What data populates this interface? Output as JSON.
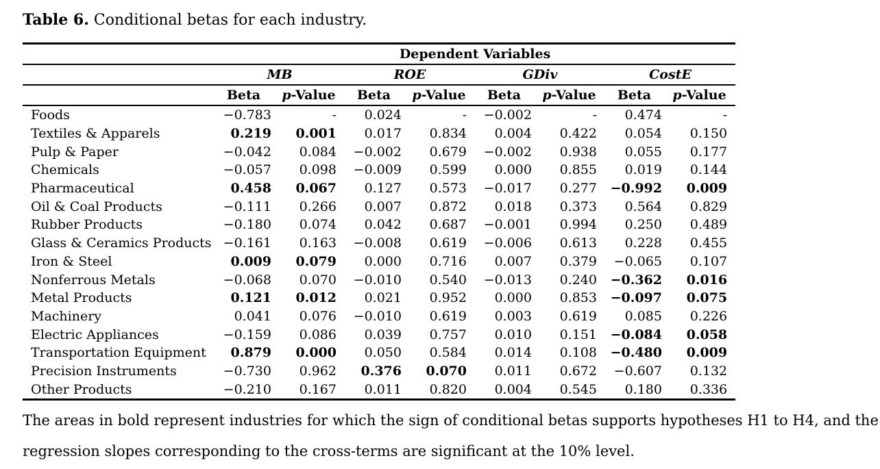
{
  "title": {
    "label": "Table 6.",
    "text": "Conditional betas for each industry."
  },
  "table": {
    "dependent_variables_header": "Dependent Variables",
    "groups": [
      "MB",
      "ROE",
      "GDiv",
      "CostE"
    ],
    "beta_header": "Beta",
    "pvalue_header": {
      "p": "p",
      "rest": "-Value"
    },
    "rows": [
      {
        "industry": "Foods",
        "cells": [
          {
            "v": "−0.783",
            "b": false
          },
          {
            "v": "-",
            "b": false
          },
          {
            "v": "0.024",
            "b": false
          },
          {
            "v": "-",
            "b": false
          },
          {
            "v": "−0.002",
            "b": false
          },
          {
            "v": "-",
            "b": false
          },
          {
            "v": "0.474",
            "b": false
          },
          {
            "v": "-",
            "b": false
          }
        ]
      },
      {
        "industry": "Textiles & Apparels",
        "cells": [
          {
            "v": "0.219",
            "b": true
          },
          {
            "v": "0.001",
            "b": true
          },
          {
            "v": "0.017",
            "b": false
          },
          {
            "v": "0.834",
            "b": false
          },
          {
            "v": "0.004",
            "b": false
          },
          {
            "v": "0.422",
            "b": false
          },
          {
            "v": "0.054",
            "b": false
          },
          {
            "v": "0.150",
            "b": false
          }
        ]
      },
      {
        "industry": "Pulp & Paper",
        "cells": [
          {
            "v": "−0.042",
            "b": false
          },
          {
            "v": "0.084",
            "b": false
          },
          {
            "v": "−0.002",
            "b": false
          },
          {
            "v": "0.679",
            "b": false
          },
          {
            "v": "−0.002",
            "b": false
          },
          {
            "v": "0.938",
            "b": false
          },
          {
            "v": "0.055",
            "b": false
          },
          {
            "v": "0.177",
            "b": false
          }
        ]
      },
      {
        "industry": "Chemicals",
        "cells": [
          {
            "v": "−0.057",
            "b": false
          },
          {
            "v": "0.098",
            "b": false
          },
          {
            "v": "−0.009",
            "b": false
          },
          {
            "v": "0.599",
            "b": false
          },
          {
            "v": "0.000",
            "b": false
          },
          {
            "v": "0.855",
            "b": false
          },
          {
            "v": "0.019",
            "b": false
          },
          {
            "v": "0.144",
            "b": false
          }
        ]
      },
      {
        "industry": "Pharmaceutical",
        "cells": [
          {
            "v": "0.458",
            "b": true
          },
          {
            "v": "0.067",
            "b": true
          },
          {
            "v": "0.127",
            "b": false
          },
          {
            "v": "0.573",
            "b": false
          },
          {
            "v": "−0.017",
            "b": false
          },
          {
            "v": "0.277",
            "b": false
          },
          {
            "v": "−0.992",
            "b": true
          },
          {
            "v": "0.009",
            "b": true
          }
        ]
      },
      {
        "industry": "Oil & Coal Products",
        "cells": [
          {
            "v": "−0.111",
            "b": false
          },
          {
            "v": "0.266",
            "b": false
          },
          {
            "v": "0.007",
            "b": false
          },
          {
            "v": "0.872",
            "b": false
          },
          {
            "v": "0.018",
            "b": false
          },
          {
            "v": "0.373",
            "b": false
          },
          {
            "v": "0.564",
            "b": false
          },
          {
            "v": "0.829",
            "b": false
          }
        ]
      },
      {
        "industry": "Rubber Products",
        "cells": [
          {
            "v": "−0.180",
            "b": false
          },
          {
            "v": "0.074",
            "b": false
          },
          {
            "v": "0.042",
            "b": false
          },
          {
            "v": "0.687",
            "b": false
          },
          {
            "v": "−0.001",
            "b": false
          },
          {
            "v": "0.994",
            "b": false
          },
          {
            "v": "0.250",
            "b": false
          },
          {
            "v": "0.489",
            "b": false
          }
        ]
      },
      {
        "industry": "Glass & Ceramics Products",
        "cells": [
          {
            "v": "−0.161",
            "b": false
          },
          {
            "v": "0.163",
            "b": false
          },
          {
            "v": "−0.008",
            "b": false
          },
          {
            "v": "0.619",
            "b": false
          },
          {
            "v": "−0.006",
            "b": false
          },
          {
            "v": "0.613",
            "b": false
          },
          {
            "v": "0.228",
            "b": false
          },
          {
            "v": "0.455",
            "b": false
          }
        ]
      },
      {
        "industry": "Iron & Steel",
        "cells": [
          {
            "v": "0.009",
            "b": true
          },
          {
            "v": "0.079",
            "b": true
          },
          {
            "v": "0.000",
            "b": false
          },
          {
            "v": "0.716",
            "b": false
          },
          {
            "v": "0.007",
            "b": false
          },
          {
            "v": "0.379",
            "b": false
          },
          {
            "v": "−0.065",
            "b": false
          },
          {
            "v": "0.107",
            "b": false
          }
        ]
      },
      {
        "industry": "Nonferrous Metals",
        "cells": [
          {
            "v": "−0.068",
            "b": false
          },
          {
            "v": "0.070",
            "b": false
          },
          {
            "v": "−0.010",
            "b": false
          },
          {
            "v": "0.540",
            "b": false
          },
          {
            "v": "−0.013",
            "b": false
          },
          {
            "v": "0.240",
            "b": false
          },
          {
            "v": "−0.362",
            "b": true
          },
          {
            "v": "0.016",
            "b": true
          }
        ]
      },
      {
        "industry": "Metal Products",
        "cells": [
          {
            "v": "0.121",
            "b": true
          },
          {
            "v": "0.012",
            "b": true
          },
          {
            "v": "0.021",
            "b": false
          },
          {
            "v": "0.952",
            "b": false
          },
          {
            "v": "0.000",
            "b": false
          },
          {
            "v": "0.853",
            "b": false
          },
          {
            "v": "−0.097",
            "b": true
          },
          {
            "v": "0.075",
            "b": true
          }
        ]
      },
      {
        "industry": "Machinery",
        "cells": [
          {
            "v": "0.041",
            "b": false
          },
          {
            "v": "0.076",
            "b": false
          },
          {
            "v": "−0.010",
            "b": false
          },
          {
            "v": "0.619",
            "b": false
          },
          {
            "v": "0.003",
            "b": false
          },
          {
            "v": "0.619",
            "b": false
          },
          {
            "v": "0.085",
            "b": false
          },
          {
            "v": "0.226",
            "b": false
          }
        ]
      },
      {
        "industry": "Electric Appliances",
        "cells": [
          {
            "v": "−0.159",
            "b": false
          },
          {
            "v": "0.086",
            "b": false
          },
          {
            "v": "0.039",
            "b": false
          },
          {
            "v": "0.757",
            "b": false
          },
          {
            "v": "0.010",
            "b": false
          },
          {
            "v": "0.151",
            "b": false
          },
          {
            "v": "−0.084",
            "b": true
          },
          {
            "v": "0.058",
            "b": true
          }
        ]
      },
      {
        "industry": "Transportation Equipment",
        "cells": [
          {
            "v": "0.879",
            "b": true
          },
          {
            "v": "0.000",
            "b": true
          },
          {
            "v": "0.050",
            "b": false
          },
          {
            "v": "0.584",
            "b": false
          },
          {
            "v": "0.014",
            "b": false
          },
          {
            "v": "0.108",
            "b": false
          },
          {
            "v": "−0.480",
            "b": true
          },
          {
            "v": "0.009",
            "b": true
          }
        ]
      },
      {
        "industry": "Precision Instruments",
        "cells": [
          {
            "v": "−0.730",
            "b": false
          },
          {
            "v": "0.962",
            "b": false
          },
          {
            "v": "0.376",
            "b": true
          },
          {
            "v": "0.070",
            "b": true
          },
          {
            "v": "0.011",
            "b": false
          },
          {
            "v": "0.672",
            "b": false
          },
          {
            "v": "−0.607",
            "b": false
          },
          {
            "v": "0.132",
            "b": false
          }
        ]
      },
      {
        "industry": "Other Products",
        "cells": [
          {
            "v": "−0.210",
            "b": false
          },
          {
            "v": "0.167",
            "b": false
          },
          {
            "v": "0.011",
            "b": false
          },
          {
            "v": "0.820",
            "b": false
          },
          {
            "v": "0.004",
            "b": false
          },
          {
            "v": "0.545",
            "b": false
          },
          {
            "v": "0.180",
            "b": false
          },
          {
            "v": "0.336",
            "b": false
          }
        ]
      }
    ]
  },
  "note": {
    "line1": "The areas in bold represent industries for which the sign of conditional betas supports hypotheses H1 to H4, and the",
    "line2": "regression slopes corresponding to the cross-terms are significant at the 10% level."
  }
}
